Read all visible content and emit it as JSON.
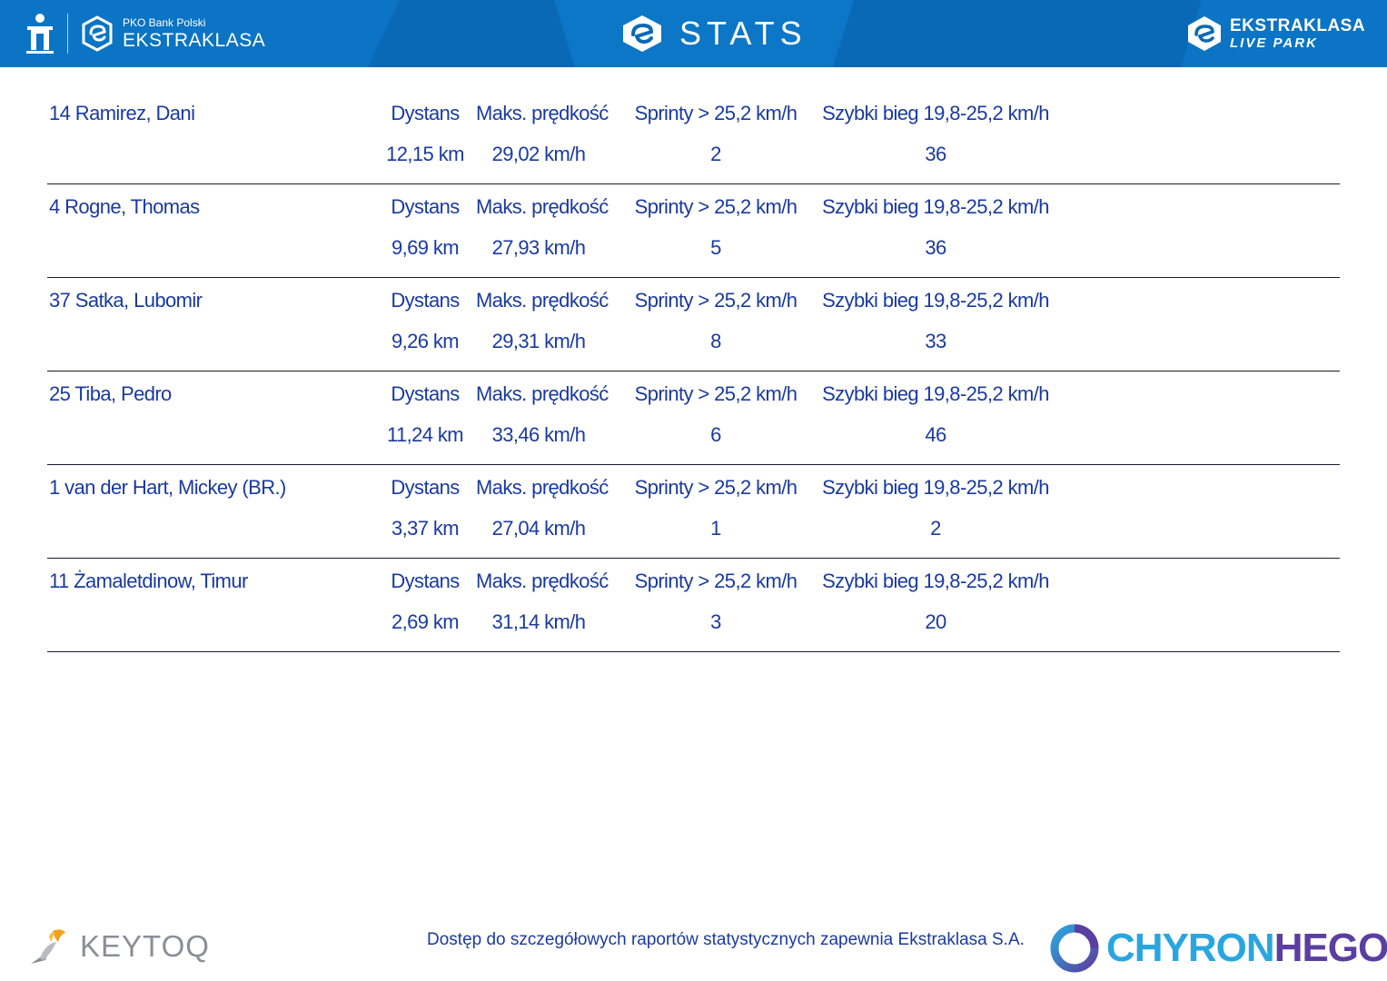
{
  "header": {
    "pko_bank_label": "PKO Bank Polski",
    "ekstraklasa_label": "EKSTRAKLASA",
    "center_title": "STATS",
    "right_line1": "EKSTRAKLASA",
    "right_line2": "LIVE PARK",
    "colors": {
      "header_bg": "#0a69b6",
      "text": "#ffffff"
    }
  },
  "table": {
    "text_color": "#1a3aa0",
    "rows": [
      {
        "player": "14  Ramirez, Dani",
        "distance_label": "Dystans",
        "speed_label": "Maks. prędkość",
        "sprints_label": "Sprinty > 25,2 km/h",
        "fast_run_label": "Szybki bieg 19,8-25,2 km/h",
        "distance": "12,15 km",
        "max_speed": "29,02 km/h",
        "sprints": "2",
        "fast_runs": "36"
      },
      {
        "player": "4  Rogne, Thomas",
        "distance_label": "Dystans",
        "speed_label": "Maks. prędkość",
        "sprints_label": "Sprinty > 25,2 km/h",
        "fast_run_label": "Szybki bieg 19,8-25,2 km/h",
        "distance": "9,69 km",
        "max_speed": "27,93 km/h",
        "sprints": "5",
        "fast_runs": "36"
      },
      {
        "player": "37  Satka, Lubomir",
        "distance_label": "Dystans",
        "speed_label": "Maks. prędkość",
        "sprints_label": "Sprinty > 25,2 km/h",
        "fast_run_label": "Szybki bieg 19,8-25,2 km/h",
        "distance": "9,26 km",
        "max_speed": "29,31 km/h",
        "sprints": "8",
        "fast_runs": "33"
      },
      {
        "player": "25  Tiba, Pedro",
        "distance_label": "Dystans",
        "speed_label": "Maks. prędkość",
        "sprints_label": "Sprinty > 25,2 km/h",
        "fast_run_label": "Szybki bieg 19,8-25,2 km/h",
        "distance": "11,24 km",
        "max_speed": "33,46 km/h",
        "sprints": "6",
        "fast_runs": "46"
      },
      {
        "player": "1  van der Hart, Mickey (BR.)",
        "distance_label": "Dystans",
        "speed_label": "Maks. prędkość",
        "sprints_label": "Sprinty > 25,2 km/h",
        "fast_run_label": "Szybki bieg 19,8-25,2 km/h",
        "distance": "3,37 km",
        "max_speed": "27,04 km/h",
        "sprints": "1",
        "fast_runs": "2"
      },
      {
        "player": "11  Żamaletdinow, Timur",
        "distance_label": "Dystans",
        "speed_label": "Maks. prędkość",
        "sprints_label": "Sprinty > 25,2 km/h",
        "fast_run_label": "Szybki bieg 19,8-25,2 km/h",
        "distance": "2,69 km",
        "max_speed": "31,14 km/h",
        "sprints": "3",
        "fast_runs": "20"
      }
    ]
  },
  "footer": {
    "note": "Dostęp do szczegółowych raportów statystycznych zapewnia Ekstraklasa S.A.",
    "keytoq_logo_text": "KEYTOQ",
    "chyron_part1": "CHYRON",
    "chyron_part2": "HEGO",
    "colors": {
      "chyron_a": "#2aa6df",
      "chyron_b": "#5b3fa0",
      "keytoq": "#8a8f96"
    }
  }
}
